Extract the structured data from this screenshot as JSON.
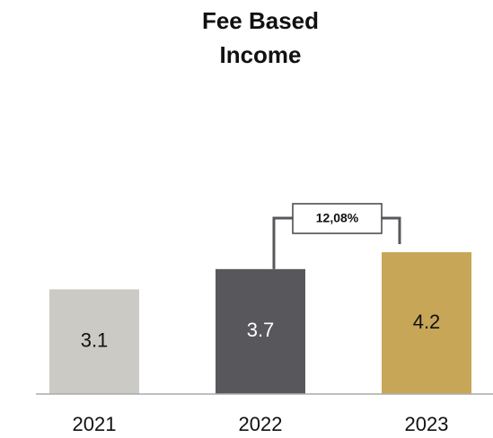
{
  "chart_data": {
    "type": "bar",
    "title": "Fee Based Income",
    "categories": [
      "2021",
      "2022",
      "2023"
    ],
    "values": [
      3.1,
      3.7,
      4.2
    ],
    "colors": [
      "#cbcac5",
      "#58585c",
      "#c7a757"
    ],
    "annotation": "12,08%"
  }
}
